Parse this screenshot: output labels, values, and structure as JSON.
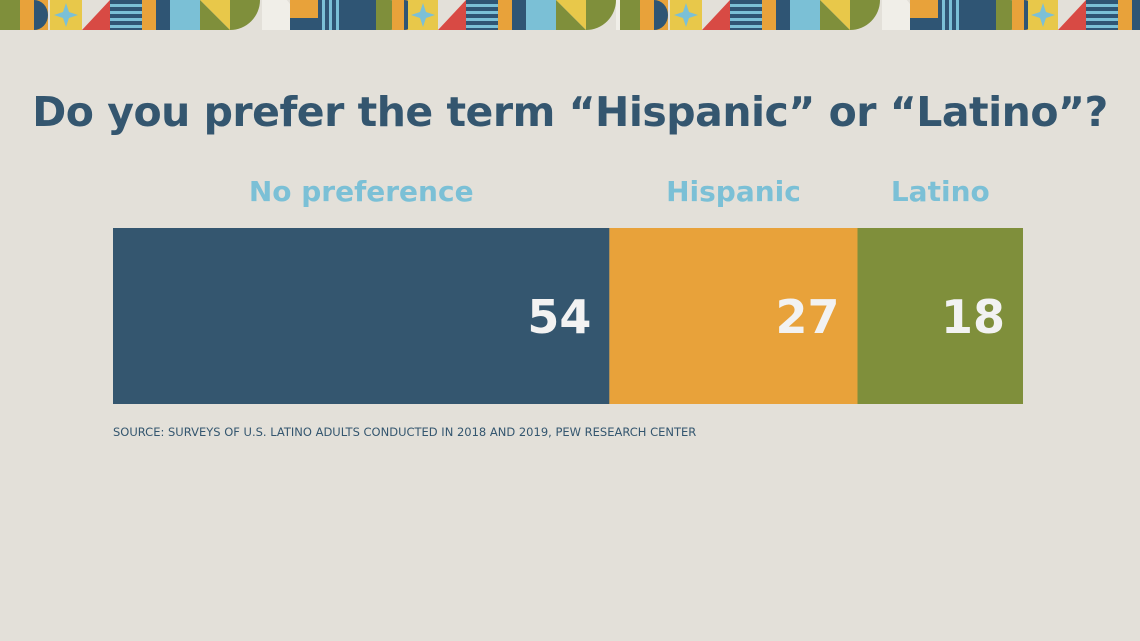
{
  "title": "Do you prefer the term “Hispanic” or “Latino”?",
  "source": "SOURCE: SURVEYS OF U.S. LATINO ADULTS CONDUCTED IN 2018 AND 2019, PEW RESEARCH CENTER",
  "colors": {
    "background": "#e3e0d9",
    "title": "#34566f",
    "category_label": "#7bc0d6",
    "value_label": "#f2f2f2"
  },
  "chart_data": {
    "type": "bar",
    "orientation": "horizontal-stacked",
    "categories": [
      "No preference",
      "Hispanic",
      "Latino"
    ],
    "values": [
      54,
      27,
      18
    ],
    "colors": [
      "#34566f",
      "#e8a23a",
      "#7f8f3b"
    ],
    "title": "Do you prefer the term “Hispanic” or “Latino”?",
    "xlabel": "",
    "ylabel": "",
    "legend": "labels above segments",
    "grid": false
  }
}
